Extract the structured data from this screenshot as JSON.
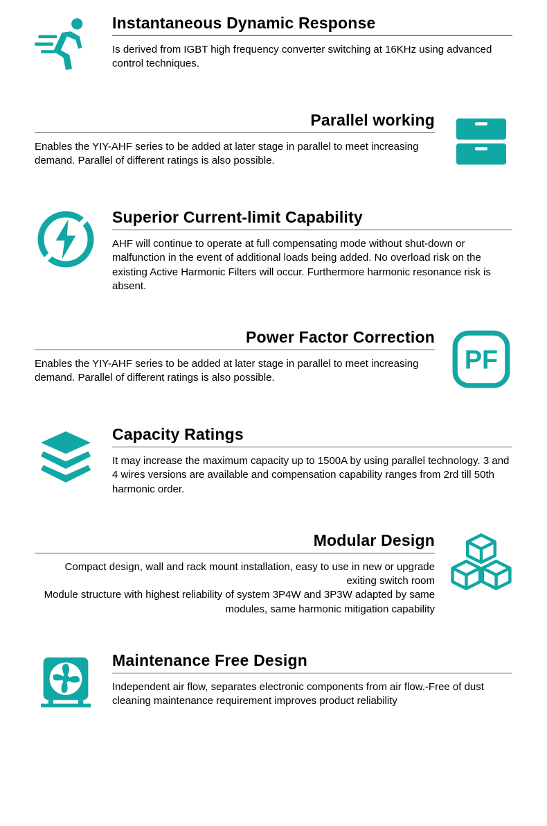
{
  "accent": "#10a7a4",
  "features": [
    {
      "key": "dynamic",
      "title": "Instantaneous Dynamic Response",
      "body": "Is derived from IGBT high frequency converter switching at 16KHz using advanced control techniques.",
      "side": "left",
      "bodyAlign": "left"
    },
    {
      "key": "parallel",
      "title": "Parallel working",
      "body": "Enables the YIY-AHF series to be added at later stage in parallel to meet increasing demand. Parallel of different ratings is also possible.",
      "side": "right",
      "bodyAlign": "left"
    },
    {
      "key": "currentlimit",
      "title": "Superior Current-limit Capability",
      "body": "AHF will continue to operate at full compensating mode without shut-down or malfunction in the event of additional loads being added. No overload risk on the existing Active Harmonic Filters will occur. Furthermore harmonic resonance risk is absent.",
      "side": "left",
      "bodyAlign": "left"
    },
    {
      "key": "pf",
      "title": "Power Factor Correction",
      "body": "Enables the YIY-AHF series to be added at later stage in parallel to meet increasing demand. Parallel of different ratings is also possible.",
      "side": "right",
      "bodyAlign": "left"
    },
    {
      "key": "capacity",
      "title": "Capacity Ratings",
      "body": "It may increase the maximum capacity up to 1500A by using parallel technology. 3 and 4 wires versions are available and compensation capability ranges from 2rd till 50th harmonic order.",
      "side": "left",
      "bodyAlign": "left"
    },
    {
      "key": "modular",
      "title": "Modular Design",
      "body": "Compact design, wall and rack mount installation, easy to use in new or upgrade exiting switch room\nModule structure with highest reliability of system 3P4W and 3P3W adapted by same modules, same harmonic mitigation capability",
      "side": "right",
      "bodyAlign": "right"
    },
    {
      "key": "maintenance",
      "title": "Maintenance Free Design",
      "body": "Independent air flow, separates electronic components from air flow.-Free of dust cleaning maintenance requirement improves product reliability",
      "side": "left",
      "bodyAlign": "left"
    }
  ]
}
